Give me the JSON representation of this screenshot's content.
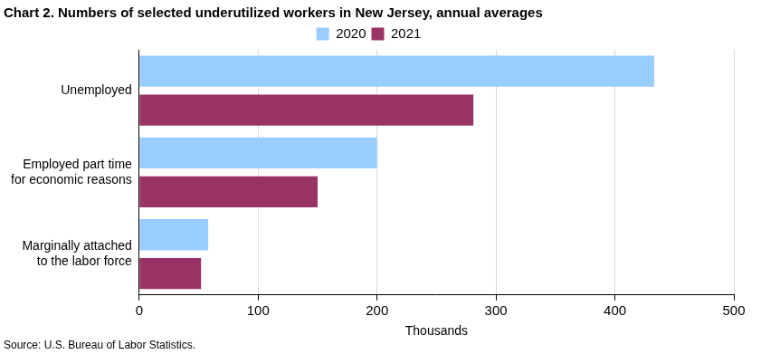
{
  "chart_data": {
    "type": "bar",
    "orientation": "horizontal",
    "title": "Chart 2. Numbers of selected underutilized workers in New Jersey, annual averages",
    "source": "Source: U.S. Bureau of Labor Statistics.",
    "x_label": "Thousands",
    "categories": [
      [
        "Unemployed"
      ],
      [
        "Employed part time",
        "for economic reasons"
      ],
      [
        "Marginally attached",
        "to the labor force"
      ]
    ],
    "series": [
      {
        "name": "2020",
        "color": "#99ccff",
        "values": [
          433,
          200,
          58
        ]
      },
      {
        "name": "2021",
        "color": "#993366",
        "values": [
          281,
          150,
          52
        ]
      }
    ],
    "xlim": [
      0,
      500
    ],
    "xticks": [
      0,
      100,
      200,
      300,
      400,
      500
    ],
    "grid": true,
    "legend": "top"
  }
}
